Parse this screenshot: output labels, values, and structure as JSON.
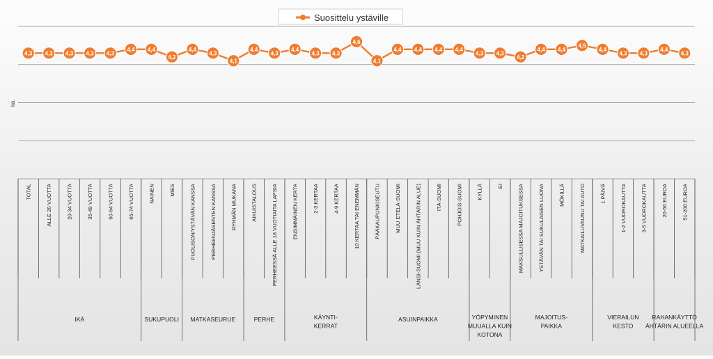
{
  "chart_data": {
    "type": "line",
    "legend": {
      "label": "Suosittelu ystäville",
      "position": "top"
    },
    "ylabel": "ka.",
    "ylim": [
      1,
      5
    ],
    "grid": true,
    "series": [
      {
        "name": "Suosittelu ystäville",
        "color": "#ED7D31",
        "values": [
          4.3,
          4.3,
          4.3,
          4.3,
          4.3,
          4.4,
          4.4,
          4.2,
          4.4,
          4.3,
          4.1,
          4.4,
          4.3,
          4.4,
          4.3,
          4.3,
          4.6,
          4.1,
          4.4,
          4.4,
          4.4,
          4.4,
          4.3,
          4.3,
          4.2,
          4.4,
          4.4,
          4.5,
          4.4,
          4.3,
          4.3,
          4.4,
          4.3
        ],
        "labels": [
          "4,3",
          "4,3",
          "4,3",
          "4,3",
          "4,3",
          "4,4",
          "4,4",
          "4,2",
          "4,4",
          "4,3",
          "4,1",
          "4,4",
          "4,3",
          "4,4",
          "4,3",
          "4,3",
          "4,6",
          "4,1",
          "4,4",
          "4,4",
          "4,4",
          "4,4",
          "4,3",
          "4,3",
          "4,2",
          "4,4",
          "4,4",
          "4,5",
          "4,4",
          "4,3",
          "4,3",
          "4,4",
          "4,3"
        ]
      }
    ],
    "categories": [
      "TOTAL",
      "ALLE 20 VUOTTA",
      "20-34 VUOTTA",
      "35-49 VUOTTA",
      "50-64 VUOTTA",
      "65-74 VUOTTA",
      "NAINEN",
      "MIES",
      "PUOLISON/YSTÄVÄN KANSSA",
      "PERHEENJÄSENTEN KANSSA",
      "RYHMÄN MUKANA",
      "AIKUISTALOUS",
      "PERHEESSÄ ALLE 18 VUOTIAITA LAPSIA",
      "ENSIMMÄINEN KERTA",
      "2-3 KERTAA",
      "4-9 KERTAA",
      "10 KERTAA TAI ENEMMÄN",
      "PÄÄKAUPUNKISEUTU",
      "MUU ETELÄ-SUOMI",
      "LÄNSI-SUOMI (MUU KUIN ÄHTÄRIN ALUE)",
      "ITÄ-SUOMI",
      "POHJOIS-SUOMI",
      "KYLLÄ",
      "EI",
      "MAKSULLISESSA MAJOITUKSESSA",
      "YSTÄVÄN TAI SUKULAISEN LUONA",
      "MÖKILLÄ",
      "MATKAILUVAUNU TAI AUTO",
      "1 PÄIVÄ",
      "1-2 VUOROKAUTTA",
      "3-5 VUOROKAUTTA",
      "20-50 EUROA",
      "51-200 EUROA"
    ],
    "groups": [
      {
        "label": [
          "IKÄ"
        ],
        "size": 6
      },
      {
        "label": [
          "SUKUPUOLI"
        ],
        "size": 2
      },
      {
        "label": [
          "MATKASEURUE"
        ],
        "size": 3
      },
      {
        "label": [
          "PERHE"
        ],
        "size": 2
      },
      {
        "label": [
          "KÄYNTI-",
          "KERRAT"
        ],
        "size": 4
      },
      {
        "label": [
          "ASUINPAIKKA"
        ],
        "size": 5
      },
      {
        "label": [
          "YÖPYMINEN",
          "MUUALLA KUIN",
          "KOTONA"
        ],
        "size": 2
      },
      {
        "label": [
          "MAJOITUS-",
          "PAIKKA"
        ],
        "size": 4
      },
      {
        "label": [
          "VIERAILUN",
          "KESTO"
        ],
        "size": 3
      },
      {
        "label": [
          "RAHANKÄYTTÖ",
          "ÄHTÄRIN ALUEELLA"
        ],
        "size": 2
      }
    ]
  }
}
